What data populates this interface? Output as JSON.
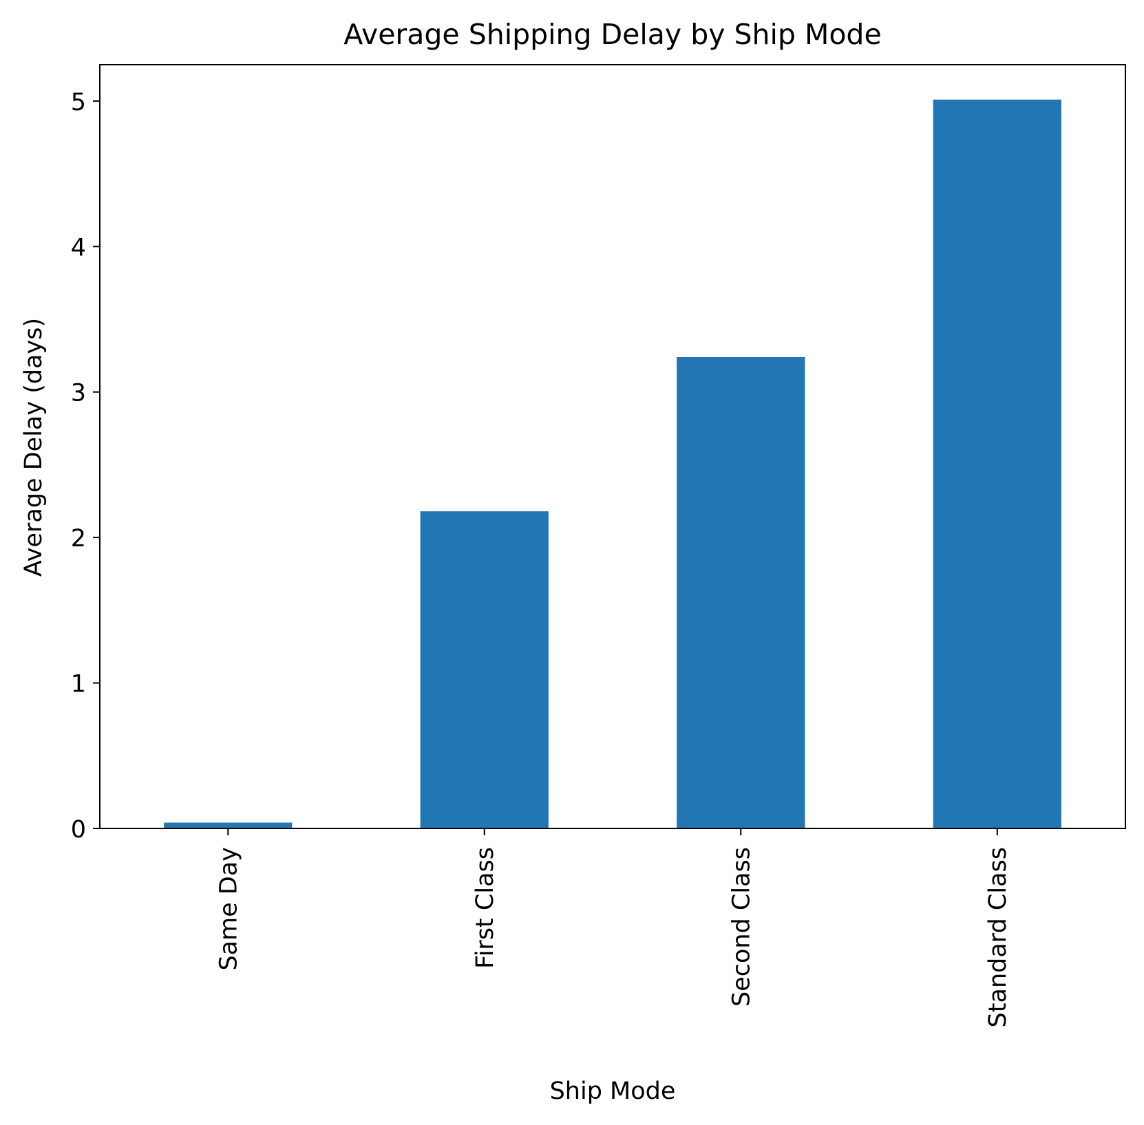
{
  "chart_data": {
    "type": "bar",
    "title": "Average Shipping Delay by Ship Mode",
    "xlabel": "Ship Mode",
    "ylabel": "Average Delay (days)",
    "categories": [
      "Same Day",
      "First Class",
      "Second Class",
      "Standard Class"
    ],
    "values": [
      0.04,
      2.18,
      3.24,
      5.01
    ],
    "ylim": [
      0,
      5.25
    ],
    "yticks": [
      0,
      1,
      2,
      3,
      4,
      5
    ],
    "grid": false,
    "legend": "none",
    "bar_color": "#2077b4",
    "tick_label_rotation": "vertical"
  }
}
